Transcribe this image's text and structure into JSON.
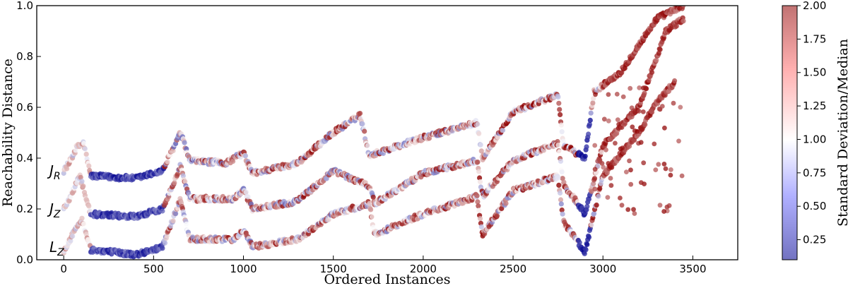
{
  "chart_data": {
    "type": "scatter",
    "xlabel": "Ordered Instances",
    "ylabel": "Reachability Distance",
    "xlim": [
      -150,
      3750
    ],
    "ylim": [
      0.0,
      1.0
    ],
    "xticks": [
      0,
      500,
      1000,
      1500,
      2000,
      2500,
      3000,
      3500
    ],
    "yticks": [
      0.0,
      0.2,
      0.4,
      0.6,
      0.8,
      1.0
    ],
    "grid": false,
    "colorbar": {
      "label": "Standard Deviation/Median",
      "range": [
        0.1,
        2.0
      ],
      "ticks": [
        0.25,
        0.5,
        0.75,
        1.0,
        1.25,
        1.5,
        1.75,
        2.0
      ],
      "tick_labels": [
        "0.25",
        "0.50",
        "0.75",
        "1.00",
        "1.25",
        "1.50",
        "1.75",
        "2.00"
      ],
      "colormap": "bwr",
      "alpha": 0.55
    },
    "series": [
      {
        "name_main": "J",
        "name_sub": "R",
        "label_y": 0.35,
        "trend": [
          [
            0,
            0.35
          ],
          [
            30,
            0.38
          ],
          [
            70,
            0.44
          ],
          [
            110,
            0.46
          ],
          [
            150,
            0.33
          ],
          [
            400,
            0.32
          ],
          [
            550,
            0.35
          ],
          [
            650,
            0.5
          ],
          [
            700,
            0.39
          ],
          [
            900,
            0.38
          ],
          [
            1000,
            0.42
          ],
          [
            1050,
            0.34
          ],
          [
            1300,
            0.38
          ],
          [
            1500,
            0.5
          ],
          [
            1650,
            0.57
          ],
          [
            1700,
            0.41
          ],
          [
            2000,
            0.48
          ],
          [
            2300,
            0.54
          ],
          [
            2330,
            0.4
          ],
          [
            2500,
            0.58
          ],
          [
            2750,
            0.65
          ],
          [
            2780,
            0.45
          ],
          [
            2900,
            0.4
          ],
          [
            2950,
            0.66
          ],
          [
            3100,
            0.74
          ],
          [
            3300,
            0.95
          ],
          [
            3450,
            1.0
          ]
        ]
      },
      {
        "name_main": "J",
        "name_sub": "Z",
        "label_y": 0.2,
        "trend": [
          [
            0,
            0.2
          ],
          [
            40,
            0.25
          ],
          [
            90,
            0.33
          ],
          [
            150,
            0.18
          ],
          [
            400,
            0.17
          ],
          [
            550,
            0.2
          ],
          [
            650,
            0.37
          ],
          [
            700,
            0.24
          ],
          [
            950,
            0.24
          ],
          [
            1000,
            0.28
          ],
          [
            1050,
            0.2
          ],
          [
            1300,
            0.23
          ],
          [
            1500,
            0.35
          ],
          [
            1700,
            0.29
          ],
          [
            1730,
            0.22
          ],
          [
            2000,
            0.34
          ],
          [
            2300,
            0.39
          ],
          [
            2330,
            0.25
          ],
          [
            2500,
            0.39
          ],
          [
            2750,
            0.46
          ],
          [
            2780,
            0.3
          ],
          [
            2900,
            0.18
          ],
          [
            3000,
            0.45
          ],
          [
            3200,
            0.6
          ],
          [
            3350,
            0.9
          ],
          [
            3450,
            0.95
          ]
        ]
      },
      {
        "name_main": "L",
        "name_sub": "Z",
        "label_y": 0.05,
        "trend": [
          [
            0,
            0.03
          ],
          [
            50,
            0.1
          ],
          [
            100,
            0.16
          ],
          [
            150,
            0.04
          ],
          [
            400,
            0.02
          ],
          [
            550,
            0.05
          ],
          [
            650,
            0.24
          ],
          [
            700,
            0.08
          ],
          [
            950,
            0.08
          ],
          [
            1000,
            0.12
          ],
          [
            1050,
            0.05
          ],
          [
            1300,
            0.08
          ],
          [
            1500,
            0.18
          ],
          [
            1700,
            0.22
          ],
          [
            1730,
            0.1
          ],
          [
            2000,
            0.18
          ],
          [
            2300,
            0.25
          ],
          [
            2330,
            0.1
          ],
          [
            2500,
            0.27
          ],
          [
            2750,
            0.33
          ],
          [
            2780,
            0.15
          ],
          [
            2900,
            0.03
          ],
          [
            3000,
            0.33
          ],
          [
            3200,
            0.5
          ],
          [
            3300,
            0.62
          ],
          [
            3400,
            0.7
          ]
        ]
      }
    ]
  }
}
